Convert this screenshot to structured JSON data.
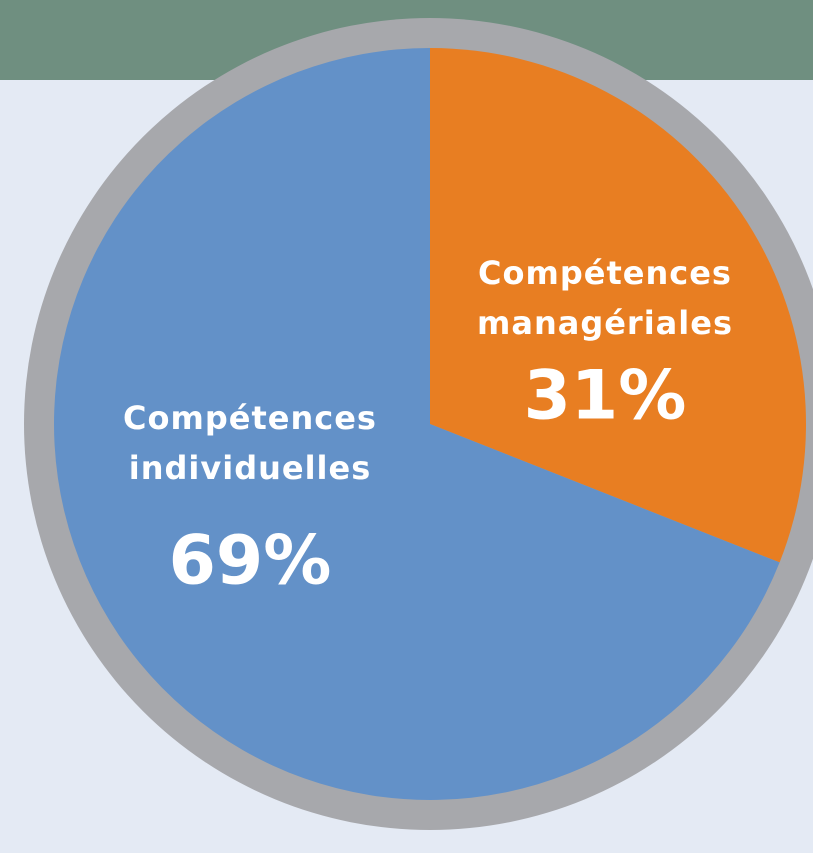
{
  "chart_data": {
    "type": "pie",
    "categories": [
      "Compétences managériales",
      "Compétences individuelles"
    ],
    "values": [
      31,
      69
    ],
    "value_labels": [
      "31%",
      "69%"
    ],
    "colors": [
      "#e87e22",
      "#6391c8"
    ]
  }
}
